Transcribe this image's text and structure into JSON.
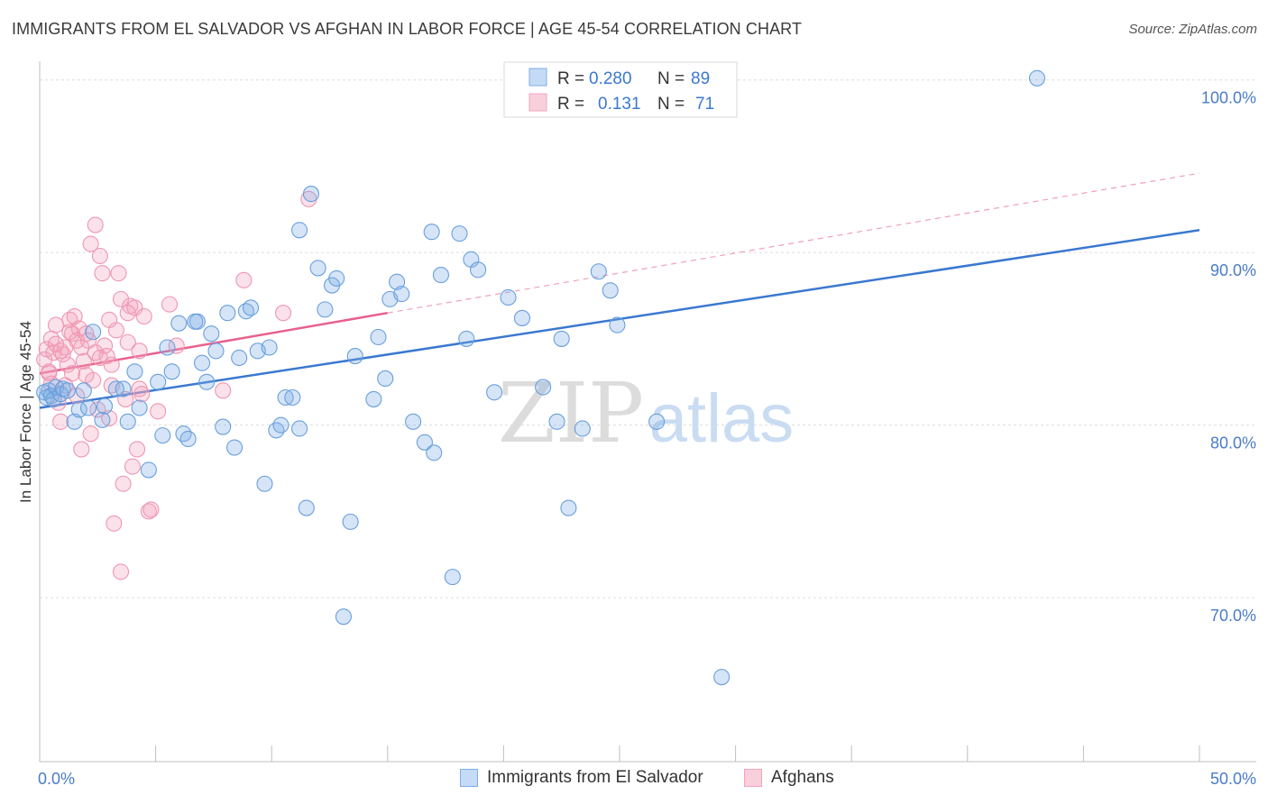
{
  "title": "IMMIGRANTS FROM EL SALVADOR VS AFGHAN IN LABOR FORCE | AGE 45-54 CORRELATION CHART",
  "source": "Source: ZipAtlas.com",
  "watermark": {
    "zip": "ZIP",
    "atlas": "atlas"
  },
  "colors": {
    "blue": "#7baee6",
    "blue_line": "#3a78d0",
    "pink": "#f4a4bd",
    "pink_line": "#e8608c",
    "axis_text": "#4a7cc7"
  },
  "legend": {
    "r_label": "R =",
    "n_label": "N =",
    "rows": [
      {
        "r": "0.280",
        "n": "89"
      },
      {
        "r": "0.131",
        "n": "71"
      }
    ]
  },
  "chart_data": {
    "type": "scatter",
    "xlabel": "",
    "ylabel": "In Labor Force | Age 45-54",
    "xlim": [
      0,
      50
    ],
    "ylim": [
      60.5,
      101.5
    ],
    "x_ticks": [
      "0.0%",
      "50.0%"
    ],
    "y_ticks": [
      {
        "value": 100,
        "label": "100.0%"
      },
      {
        "value": 90,
        "label": "90.0%"
      },
      {
        "value": 80,
        "label": "80.0%"
      },
      {
        "value": 70,
        "label": "70.0%"
      }
    ],
    "grid": true,
    "series": [
      {
        "name": "Immigrants from El Salvador",
        "color": "#7baee6",
        "trend": {
          "x": [
            0,
            50
          ],
          "y": [
            81.0,
            91.3
          ],
          "style": "solid"
        },
        "points": [
          [
            0.2,
            81.9
          ],
          [
            0.3,
            81.6
          ],
          [
            0.4,
            82.0
          ],
          [
            0.5,
            81.7
          ],
          [
            0.6,
            81.5
          ],
          [
            0.7,
            82.2
          ],
          [
            0.9,
            81.8
          ],
          [
            1.0,
            82.1
          ],
          [
            1.2,
            82.0
          ],
          [
            1.5,
            80.2
          ],
          [
            1.7,
            80.9
          ],
          [
            1.9,
            82.0
          ],
          [
            2.1,
            81.0
          ],
          [
            2.7,
            80.3
          ],
          [
            2.8,
            81.1
          ],
          [
            3.3,
            82.1
          ],
          [
            3.6,
            82.1
          ],
          [
            3.8,
            80.2
          ],
          [
            4.1,
            83.1
          ],
          [
            4.3,
            81.0
          ],
          [
            4.7,
            77.4
          ],
          [
            5.1,
            82.5
          ],
          [
            5.3,
            79.4
          ],
          [
            5.5,
            84.5
          ],
          [
            5.7,
            83.1
          ],
          [
            6.0,
            85.9
          ],
          [
            6.2,
            79.5
          ],
          [
            6.4,
            79.2
          ],
          [
            6.8,
            86.0
          ],
          [
            7.0,
            83.6
          ],
          [
            7.2,
            82.5
          ],
          [
            7.4,
            85.3
          ],
          [
            7.6,
            84.3
          ],
          [
            7.9,
            79.9
          ],
          [
            8.1,
            86.5
          ],
          [
            8.4,
            78.7
          ],
          [
            8.6,
            83.9
          ],
          [
            8.9,
            86.6
          ],
          [
            9.1,
            86.8
          ],
          [
            9.4,
            84.3
          ],
          [
            9.7,
            76.6
          ],
          [
            9.9,
            84.5
          ],
          [
            10.2,
            79.7
          ],
          [
            10.4,
            80.0
          ],
          [
            10.6,
            81.6
          ],
          [
            10.9,
            81.6
          ],
          [
            11.2,
            79.8
          ],
          [
            11.5,
            75.2
          ],
          [
            11.7,
            93.4
          ],
          [
            12.0,
            89.1
          ],
          [
            12.3,
            86.7
          ],
          [
            12.6,
            88.1
          ],
          [
            12.8,
            88.5
          ],
          [
            13.1,
            68.9
          ],
          [
            13.4,
            74.4
          ],
          [
            13.6,
            84.0
          ],
          [
            14.4,
            81.5
          ],
          [
            14.6,
            85.1
          ],
          [
            14.9,
            82.7
          ],
          [
            15.1,
            87.3
          ],
          [
            15.4,
            88.3
          ],
          [
            15.6,
            87.6
          ],
          [
            16.1,
            80.2
          ],
          [
            16.6,
            79.0
          ],
          [
            17.0,
            78.4
          ],
          [
            17.3,
            88.7
          ],
          [
            17.8,
            71.2
          ],
          [
            18.1,
            91.1
          ],
          [
            18.4,
            85.0
          ],
          [
            18.6,
            89.6
          ],
          [
            18.9,
            89.0
          ],
          [
            19.6,
            81.9
          ],
          [
            20.2,
            87.4
          ],
          [
            20.8,
            86.2
          ],
          [
            21.7,
            82.2
          ],
          [
            22.3,
            80.2
          ],
          [
            22.5,
            85.0
          ],
          [
            22.8,
            75.2
          ],
          [
            23.4,
            79.8
          ],
          [
            24.1,
            88.9
          ],
          [
            24.6,
            87.8
          ],
          [
            24.9,
            85.8
          ],
          [
            26.6,
            80.2
          ],
          [
            29.4,
            65.4
          ],
          [
            43.0,
            100.1
          ],
          [
            2.3,
            85.4
          ],
          [
            6.7,
            86.0
          ],
          [
            16.9,
            91.2
          ],
          [
            11.2,
            91.3
          ]
        ]
      },
      {
        "name": "Afghans",
        "color": "#f4a4bd",
        "trend": {
          "x": [
            0,
            15
          ],
          "y": [
            83.0,
            86.5
          ],
          "style": "solid",
          "extend": {
            "x": [
              15,
              50
            ],
            "y": [
              86.5,
              94.6
            ],
            "style": "dashed"
          }
        },
        "points": [
          [
            0.2,
            83.8
          ],
          [
            0.3,
            84.4
          ],
          [
            0.4,
            83.1
          ],
          [
            0.5,
            82.4
          ],
          [
            0.6,
            84.2
          ],
          [
            0.7,
            85.8
          ],
          [
            0.8,
            81.3
          ],
          [
            0.9,
            80.2
          ],
          [
            1.0,
            84.1
          ],
          [
            1.1,
            82.3
          ],
          [
            1.2,
            83.5
          ],
          [
            1.3,
            86.1
          ],
          [
            1.4,
            85.3
          ],
          [
            1.5,
            86.3
          ],
          [
            1.6,
            84.9
          ],
          [
            1.7,
            85.6
          ],
          [
            1.8,
            84.5
          ],
          [
            1.9,
            83.7
          ],
          [
            2.0,
            85.3
          ],
          [
            2.1,
            84.9
          ],
          [
            2.2,
            90.5
          ],
          [
            2.3,
            82.6
          ],
          [
            2.4,
            91.6
          ],
          [
            2.5,
            80.9
          ],
          [
            2.6,
            83.9
          ],
          [
            2.7,
            88.8
          ],
          [
            2.8,
            84.6
          ],
          [
            2.9,
            84.0
          ],
          [
            3.0,
            80.4
          ],
          [
            3.1,
            83.5
          ],
          [
            3.2,
            74.3
          ],
          [
            3.3,
            85.5
          ],
          [
            3.4,
            88.8
          ],
          [
            3.5,
            87.3
          ],
          [
            3.6,
            76.6
          ],
          [
            3.7,
            81.5
          ],
          [
            3.8,
            84.8
          ],
          [
            3.9,
            86.9
          ],
          [
            4.0,
            77.6
          ],
          [
            4.1,
            86.8
          ],
          [
            4.2,
            78.6
          ],
          [
            4.3,
            82.1
          ],
          [
            4.4,
            81.8
          ],
          [
            4.5,
            86.3
          ],
          [
            4.7,
            75.0
          ],
          [
            4.8,
            75.1
          ],
          [
            5.1,
            80.8
          ],
          [
            5.6,
            87.0
          ],
          [
            5.9,
            84.6
          ],
          [
            7.9,
            82.0
          ],
          [
            8.8,
            88.4
          ],
          [
            10.5,
            86.5
          ],
          [
            11.6,
            93.1
          ],
          [
            0.5,
            85.0
          ],
          [
            0.9,
            84.3
          ],
          [
            1.4,
            83.0
          ],
          [
            1.8,
            78.6
          ],
          [
            2.2,
            79.5
          ],
          [
            2.6,
            89.8
          ],
          [
            3.0,
            86.1
          ],
          [
            3.5,
            71.5
          ],
          [
            4.3,
            84.3
          ],
          [
            1.1,
            84.5
          ],
          [
            1.6,
            81.7
          ],
          [
            2.0,
            82.9
          ],
          [
            3.8,
            86.5
          ],
          [
            0.4,
            83.0
          ],
          [
            2.4,
            84.2
          ],
          [
            1.3,
            85.4
          ],
          [
            3.1,
            82.3
          ],
          [
            0.7,
            84.7
          ]
        ]
      }
    ]
  }
}
